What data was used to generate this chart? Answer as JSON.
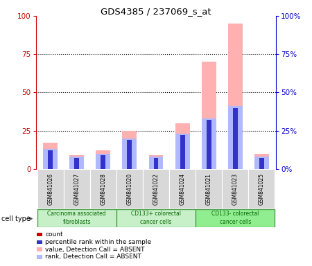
{
  "title": "GDS4385 / 237069_s_at",
  "samples": [
    "GSM841026",
    "GSM841027",
    "GSM841028",
    "GSM841020",
    "GSM841022",
    "GSM841024",
    "GSM841021",
    "GSM841023",
    "GSM841025"
  ],
  "value_absent": [
    17,
    9,
    12,
    25,
    9,
    30,
    70,
    95,
    10
  ],
  "rank_absent": [
    13,
    8,
    10,
    20,
    8,
    23,
    33,
    41,
    8
  ],
  "count_val": [
    3,
    2,
    2,
    2,
    1,
    2,
    1,
    1,
    1
  ],
  "rank_val": [
    12,
    7,
    9,
    19,
    7,
    22,
    32,
    40,
    7
  ],
  "ylim": [
    0,
    100
  ],
  "yticks": [
    0,
    25,
    50,
    75,
    100
  ],
  "left_axis_color": "#cc0000",
  "right_axis_color": "#0000cc",
  "group_names": [
    "Carcinoma associated\nfibroblasts",
    "CD133+ colorectal\ncancer cells",
    "CD133- colorectal\ncancer cells"
  ],
  "group_colors": [
    "#c8f0c8",
    "#c8f0c8",
    "#90ee90"
  ],
  "group_border_colors": [
    "#50a050",
    "#50a050",
    "#50a050"
  ],
  "group_ranges": [
    [
      0,
      2
    ],
    [
      3,
      5
    ],
    [
      6,
      8
    ]
  ],
  "legend_colors": [
    "#cc0000",
    "#3333cc",
    "#ffb0b0",
    "#b0b8ff"
  ],
  "legend_labels": [
    "count",
    "percentile rank within the sample",
    "value, Detection Call = ABSENT",
    "rank, Detection Call = ABSENT"
  ]
}
